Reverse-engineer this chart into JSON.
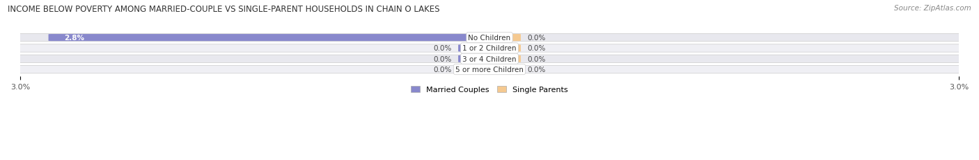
{
  "title": "INCOME BELOW POVERTY AMONG MARRIED-COUPLE VS SINGLE-PARENT HOUSEHOLDS IN CHAIN O LAKES",
  "source": "Source: ZipAtlas.com",
  "categories": [
    "No Children",
    "1 or 2 Children",
    "3 or 4 Children",
    "5 or more Children"
  ],
  "married_values": [
    2.8,
    0.0,
    0.0,
    0.0
  ],
  "single_values": [
    0.0,
    0.0,
    0.0,
    0.0
  ],
  "xlim_abs": 3.0,
  "married_color": "#8888cc",
  "single_color": "#f5c990",
  "row_bg_color": "#e8e8ee",
  "row_bg_color2": "#efeff4",
  "label_color": "#333333",
  "title_color": "#333333",
  "bar_height": 0.62,
  "legend_labels": [
    "Married Couples",
    "Single Parents"
  ],
  "axis_label": "3.0%",
  "zero_bar_width": 0.18,
  "label_fontsize": 7.5,
  "title_fontsize": 8.5,
  "source_fontsize": 7.5
}
